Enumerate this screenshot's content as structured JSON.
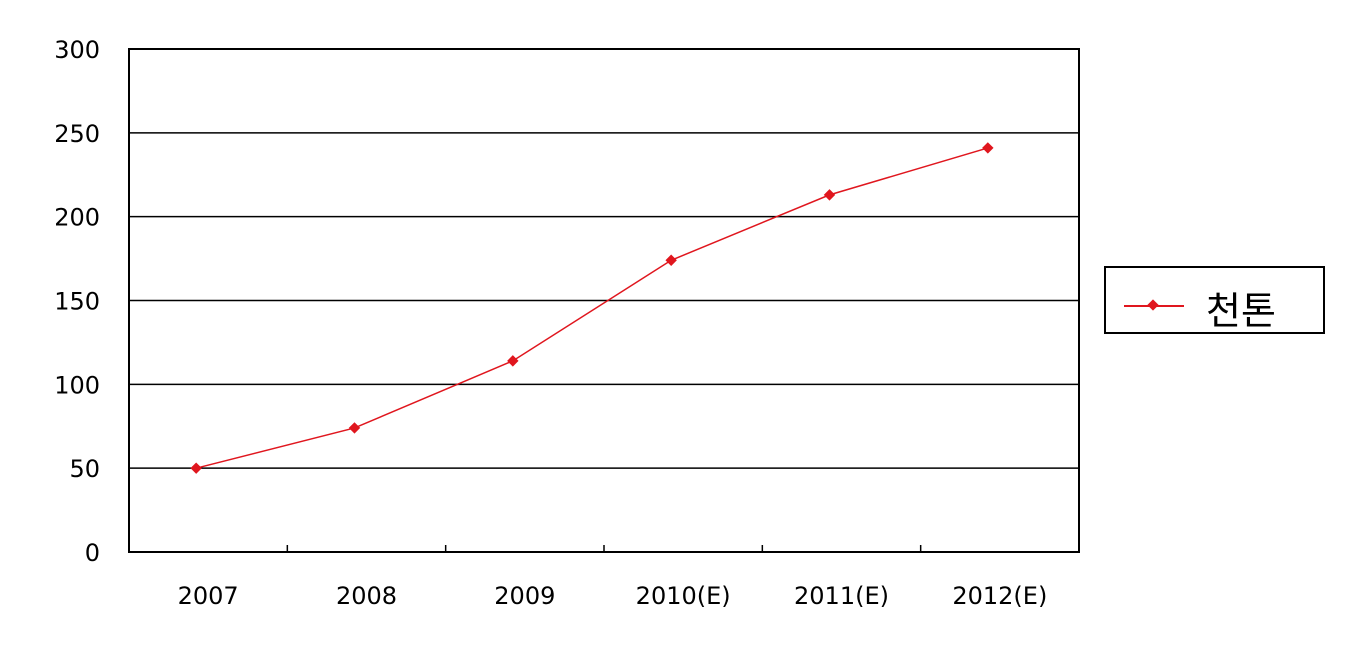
{
  "chart_data": {
    "type": "line",
    "categories": [
      "2007",
      "2008",
      "2009",
      "2010(E)",
      "2011(E)",
      "2012(E)"
    ],
    "series": [
      {
        "name": "천톤",
        "values": [
          50,
          74,
          114,
          174,
          213,
          241
        ],
        "color": "#e0161e"
      }
    ],
    "yticks": [
      "0",
      "50",
      "100",
      "150",
      "200",
      "250",
      "300"
    ],
    "ylim": [
      0,
      300
    ],
    "grid": "horizontal",
    "legend_position": "right",
    "marker": "diamond"
  }
}
